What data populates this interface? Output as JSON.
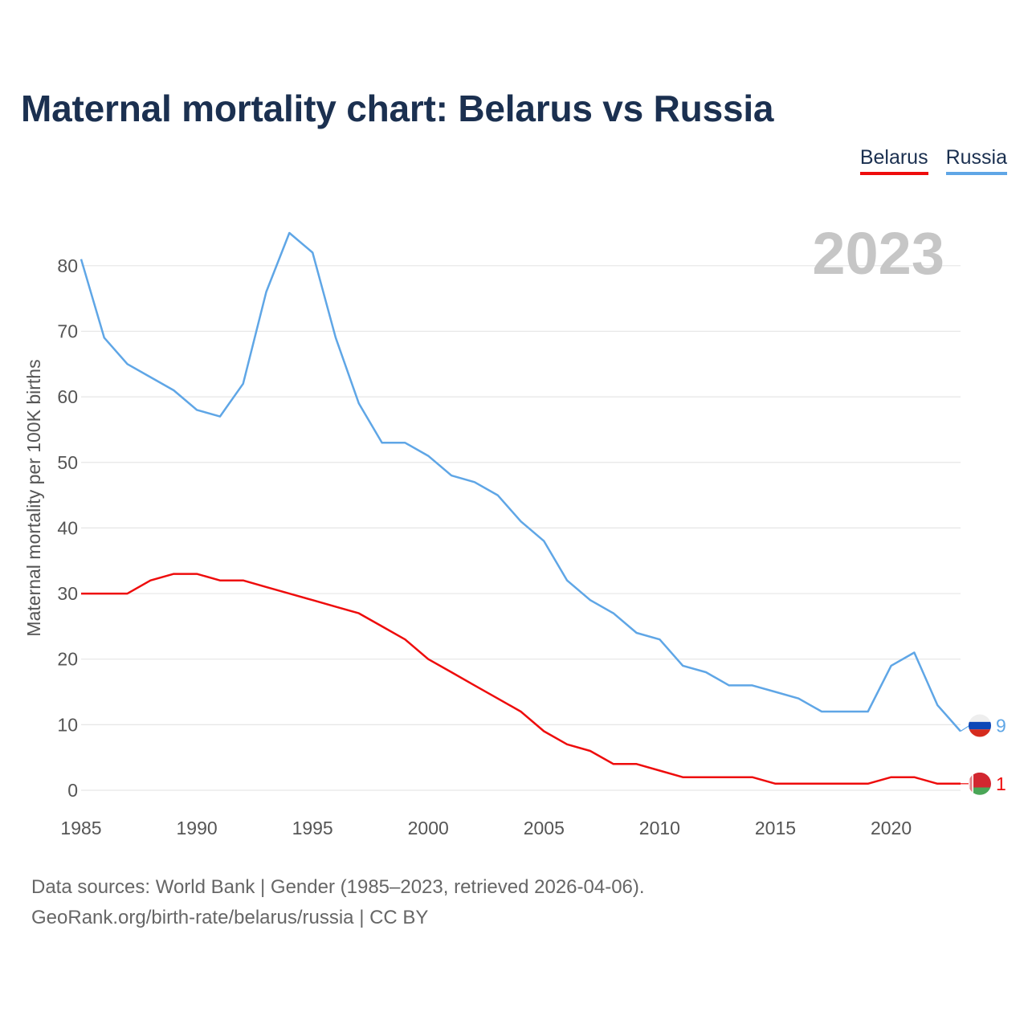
{
  "title": "Maternal mortality chart: Belarus vs Russia",
  "legend": [
    {
      "name": "Belarus",
      "color": "#ee0c0c"
    },
    {
      "name": "Russia",
      "color": "#5fa6e6"
    }
  ],
  "year_label": "2023",
  "footer": {
    "line1": "Data sources: World Bank | Gender (1985–2023, retrieved 2026-04-06).",
    "line2": "GeoRank.org/birth-rate/belarus/russia | CC BY"
  },
  "chart_data": {
    "type": "line",
    "title": "Maternal mortality chart: Belarus vs Russia",
    "xlabel": "",
    "ylabel": "Maternal mortality per 100K births",
    "xlim": [
      1985,
      2023
    ],
    "ylim": [
      0,
      85
    ],
    "xticks": [
      1985,
      1990,
      1995,
      2000,
      2005,
      2010,
      2015,
      2020
    ],
    "yticks": [
      0,
      10,
      20,
      30,
      40,
      50,
      60,
      70,
      80
    ],
    "grid": true,
    "legend_position": "top-right",
    "x": [
      1985,
      1986,
      1987,
      1988,
      1989,
      1990,
      1991,
      1992,
      1993,
      1994,
      1995,
      1996,
      1997,
      1998,
      1999,
      2000,
      2001,
      2002,
      2003,
      2004,
      2005,
      2006,
      2007,
      2008,
      2009,
      2010,
      2011,
      2012,
      2013,
      2014,
      2015,
      2016,
      2017,
      2018,
      2019,
      2020,
      2021,
      2022,
      2023
    ],
    "series": [
      {
        "name": "Belarus",
        "color": "#ee0c0c",
        "end_label": "1",
        "values": [
          30,
          30,
          30,
          32,
          33,
          33,
          32,
          32,
          31,
          30,
          29,
          28,
          27,
          25,
          23,
          20,
          18,
          16,
          14,
          12,
          9,
          7,
          6,
          4,
          4,
          3,
          2,
          2,
          2,
          2,
          1,
          1,
          1,
          1,
          1,
          2,
          2,
          1,
          1
        ]
      },
      {
        "name": "Russia",
        "color": "#5fa6e6",
        "end_label": "9",
        "values": [
          81,
          69,
          65,
          63,
          61,
          58,
          57,
          62,
          76,
          85,
          82,
          69,
          59,
          53,
          53,
          51,
          48,
          47,
          45,
          41,
          38,
          32,
          29,
          27,
          24,
          23,
          19,
          18,
          16,
          16,
          15,
          14,
          12,
          12,
          12,
          19,
          21,
          13,
          9
        ]
      }
    ]
  }
}
